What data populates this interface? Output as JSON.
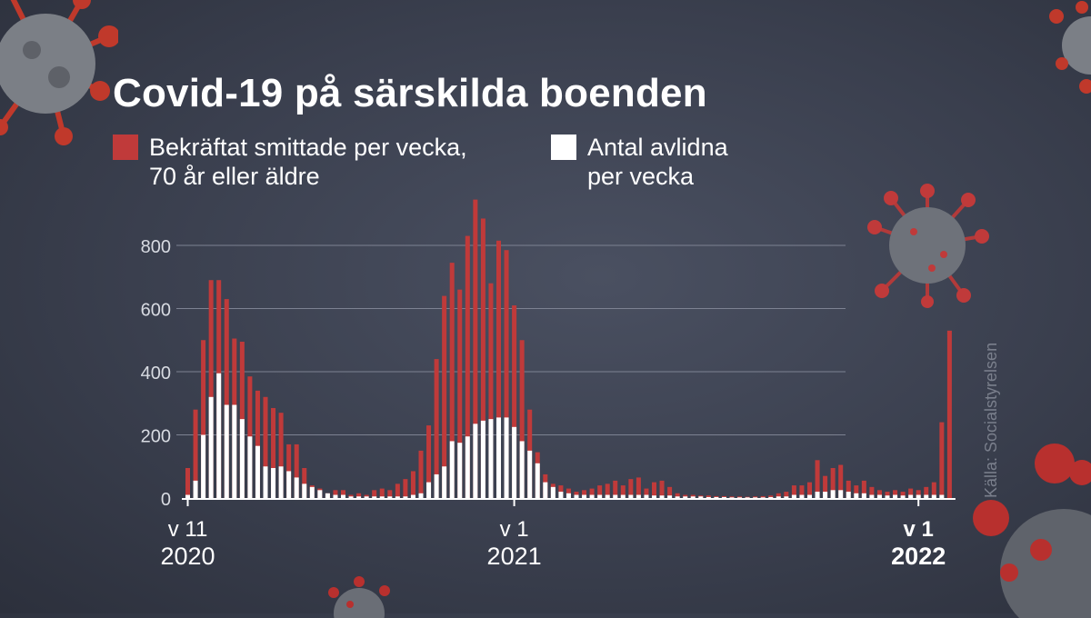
{
  "title": "Covid-19 på särskilda boenden",
  "legend": [
    {
      "label": "Bekräftat smittade per vecka, 70 år eller äldre",
      "color": "#c03a3a"
    },
    {
      "label": "Antal avlidna per vecka",
      "color": "#ffffff"
    }
  ],
  "source": "Källa: Socialstyrelsen",
  "chart_data": {
    "type": "bar",
    "title": "Covid-19 på särskilda boenden",
    "ylim": [
      0,
      950
    ],
    "yticks": [
      0,
      200,
      400,
      600,
      800
    ],
    "grid": true,
    "legend_position": "top",
    "x_ticks": [
      {
        "index": 0,
        "week": "v 11",
        "year": "2020",
        "bold": false
      },
      {
        "index": 42,
        "week": "v 1",
        "year": "2021",
        "bold": false
      },
      {
        "index": 94,
        "week": "v 1",
        "year": "2022",
        "bold": true
      }
    ],
    "series": [
      {
        "name": "Bekräftat smittade per vecka, 70 år eller äldre",
        "color": "#c03a3a",
        "values": [
          95,
          280,
          500,
          690,
          690,
          630,
          505,
          495,
          385,
          340,
          320,
          285,
          270,
          170,
          170,
          95,
          40,
          30,
          15,
          25,
          25,
          10,
          15,
          10,
          25,
          30,
          25,
          45,
          60,
          85,
          150,
          230,
          440,
          640,
          745,
          660,
          830,
          945,
          885,
          680,
          815,
          785,
          610,
          500,
          280,
          145,
          75,
          45,
          40,
          30,
          20,
          25,
          30,
          40,
          45,
          55,
          40,
          60,
          65,
          30,
          50,
          55,
          35,
          15,
          10,
          10,
          8,
          8,
          6,
          6,
          5,
          5,
          4,
          5,
          6,
          8,
          15,
          20,
          40,
          40,
          50,
          120,
          70,
          95,
          105,
          55,
          40,
          55,
          35,
          25,
          20,
          25,
          20,
          30,
          25,
          35,
          50,
          240,
          530
        ]
      },
      {
        "name": "Antal avlidna per vecka",
        "color": "#ffffff",
        "values": [
          10,
          55,
          200,
          320,
          395,
          295,
          295,
          250,
          195,
          165,
          100,
          95,
          100,
          85,
          65,
          45,
          35,
          25,
          15,
          10,
          10,
          5,
          5,
          5,
          5,
          5,
          5,
          5,
          5,
          10,
          15,
          50,
          75,
          100,
          180,
          175,
          195,
          235,
          245,
          250,
          255,
          255,
          225,
          180,
          150,
          110,
          50,
          35,
          20,
          15,
          10,
          10,
          10,
          10,
          10,
          10,
          10,
          10,
          10,
          10,
          8,
          8,
          8,
          5,
          5,
          5,
          5,
          3,
          3,
          3,
          2,
          2,
          2,
          2,
          2,
          3,
          5,
          5,
          10,
          10,
          10,
          20,
          20,
          25,
          25,
          20,
          15,
          15,
          10,
          10,
          8,
          10,
          8,
          10,
          10,
          10,
          10,
          10,
          0
        ]
      }
    ]
  }
}
